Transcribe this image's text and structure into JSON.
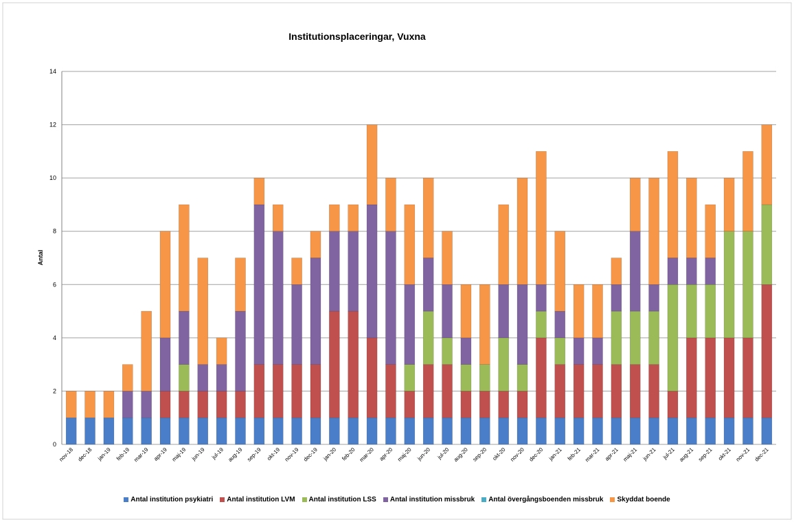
{
  "chart_data": {
    "type": "stacked_bar",
    "title": "Institutionsplaceringar, Vuxna",
    "y_label": "Antal",
    "categories": [
      "nov-18",
      "dec-18",
      "jan-19",
      "feb-19",
      "mar-19",
      "apr-19",
      "maj-19",
      "jun-19",
      "jul-19",
      "aug-19",
      "sep-19",
      "okt-19",
      "nov-19",
      "dec-19",
      "jan-20",
      "feb-20",
      "mar-20",
      "apr-20",
      "maj-20",
      "jun-20",
      "jul-20",
      "aug-20",
      "sep-20",
      "okt-20",
      "nov-20",
      "dec-20",
      "jan-21",
      "feb-21",
      "mar-21",
      "apr-21",
      "maj-21",
      "jun-21",
      "jul-21",
      "aug-21",
      "sep-21",
      "okt-21",
      "nov-21",
      "dec-21"
    ],
    "series": [
      {
        "name": "Antal institution psykiatri",
        "color": "#4a7ec8",
        "values": [
          1,
          1,
          1,
          1,
          1,
          1,
          1,
          1,
          1,
          1,
          1,
          1,
          1,
          1,
          1,
          1,
          1,
          1,
          1,
          1,
          1,
          1,
          1,
          1,
          1,
          1,
          1,
          1,
          1,
          1,
          1,
          1,
          1,
          1,
          1,
          1,
          1,
          1
        ]
      },
      {
        "name": "Antal institution LVM",
        "color": "#c0504d",
        "values": [
          0,
          0,
          0,
          0,
          0,
          1,
          1,
          1,
          1,
          1,
          2,
          2,
          2,
          2,
          4,
          4,
          3,
          2,
          1,
          2,
          2,
          1,
          1,
          1,
          1,
          3,
          2,
          2,
          2,
          2,
          2,
          2,
          1,
          3,
          3,
          3,
          3,
          5
        ]
      },
      {
        "name": "Antal institution LSS",
        "color": "#9bbb59",
        "values": [
          0,
          0,
          0,
          0,
          0,
          0,
          1,
          0,
          0,
          0,
          0,
          0,
          0,
          0,
          0,
          0,
          0,
          0,
          1,
          2,
          1,
          1,
          1,
          2,
          1,
          1,
          1,
          0,
          0,
          2,
          2,
          2,
          4,
          2,
          2,
          4,
          4,
          3
        ]
      },
      {
        "name": "Antal institution missbruk",
        "color": "#8064a2",
        "values": [
          0,
          0,
          0,
          1,
          1,
          2,
          2,
          1,
          1,
          3,
          6,
          5,
          3,
          4,
          3,
          3,
          5,
          5,
          3,
          2,
          2,
          1,
          0,
          2,
          3,
          1,
          1,
          1,
          1,
          1,
          3,
          1,
          1,
          1,
          1,
          0,
          0,
          0
        ]
      },
      {
        "name": "Antal övergångsboenden missbruk",
        "color": "#4bacc6",
        "values": [
          0,
          0,
          0,
          0,
          0,
          0,
          0,
          0,
          0,
          0,
          0,
          0,
          0,
          0,
          0,
          0,
          0,
          0,
          0,
          0,
          0,
          0,
          0,
          0,
          0,
          0,
          0,
          0,
          0,
          0,
          0,
          0,
          0,
          0,
          0,
          0,
          0,
          0
        ]
      },
      {
        "name": "Skyddat boende",
        "color": "#f79646",
        "values": [
          1,
          1,
          1,
          1,
          3,
          4,
          4,
          4,
          1,
          2,
          1,
          1,
          1,
          1,
          1,
          1,
          3,
          2,
          3,
          3,
          2,
          2,
          3,
          3,
          4,
          5,
          3,
          2,
          2,
          1,
          2,
          4,
          4,
          3,
          2,
          2,
          3,
          3
        ]
      }
    ],
    "ylim": [
      0,
      14
    ],
    "yticks": [
      0,
      2,
      4,
      6,
      8,
      10,
      12,
      14
    ],
    "grid": true
  }
}
